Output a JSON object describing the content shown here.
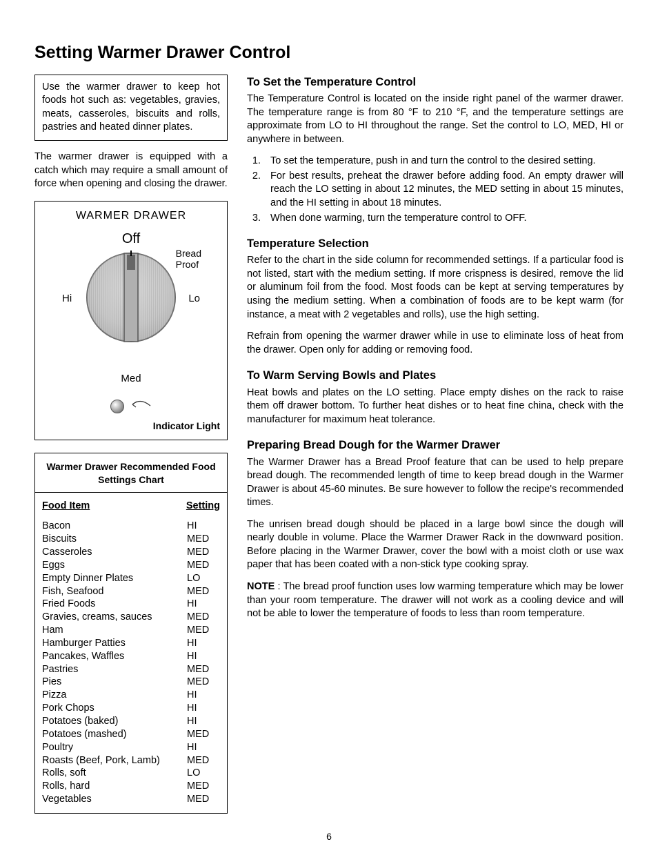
{
  "page_title": "Setting Warmer  Drawer Control",
  "intro_box": "Use the warmer drawer to keep hot foods hot such as: vegetables, gravies, meats, casseroles, biscuits and rolls, pastries and heated dinner plates.",
  "catch_text": "The warmer drawer is equipped with a catch which may require a small amount of force when opening and closing the drawer.",
  "diagram": {
    "title": "WARMER DRAWER",
    "off": "Off",
    "bread_proof": "Bread\nProof",
    "hi": "Hi",
    "lo": "Lo",
    "med": "Med",
    "indicator": "Indicator Light",
    "colors": {
      "dial_face": "#d8d8d8",
      "dial_edge": "#888888",
      "pointer_dark": "#555555",
      "pointer_fill": "#999999"
    }
  },
  "chart": {
    "title": "Warmer Drawer Recommended Food Settings Chart",
    "header_food": "Food Item",
    "header_setting": "Setting",
    "rows": [
      {
        "item": "Bacon",
        "setting": "HI"
      },
      {
        "item": "Biscuits",
        "setting": "MED"
      },
      {
        "item": "Casseroles",
        "setting": "MED"
      },
      {
        "item": "Eggs",
        "setting": "MED"
      },
      {
        "item": "Empty Dinner Plates",
        "setting": "LO"
      },
      {
        "item": "Fish, Seafood",
        "setting": "MED"
      },
      {
        "item": "Fried Foods",
        "setting": "HI"
      },
      {
        "item": "Gravies, creams, sauces",
        "setting": "MED"
      },
      {
        "item": "Ham",
        "setting": "MED"
      },
      {
        "item": "Hamburger Patties",
        "setting": "HI"
      },
      {
        "item": "Pancakes, Waffles",
        "setting": "HI"
      },
      {
        "item": "Pastries",
        "setting": "MED"
      },
      {
        "item": "Pies",
        "setting": "MED"
      },
      {
        "item": "Pizza",
        "setting": "HI"
      },
      {
        "item": "Pork Chops",
        "setting": "HI"
      },
      {
        "item": "Potatoes (baked)",
        "setting": "HI"
      },
      {
        "item": "Potatoes (mashed)",
        "setting": "MED"
      },
      {
        "item": "Poultry",
        "setting": "HI"
      },
      {
        "item": "Roasts (Beef, Pork, Lamb)",
        "setting": "MED"
      },
      {
        "item": "Rolls, soft",
        "setting": "LO"
      },
      {
        "item": "Rolls, hard",
        "setting": "MED"
      },
      {
        "item": "Vegetables",
        "setting": "MED"
      }
    ]
  },
  "sections": {
    "temp_control": {
      "heading": "To Set the Temperature Control",
      "p1": "The Temperature Control is located on the inside right panel of the warmer drawer. The temperature range is from 80 °F to 210 °F, and the temperature settings are approximate from LO to HI throughout the range. Set the control to LO, MED, HI or anywhere in between.",
      "steps": [
        "To set the temperature, push in and turn the control to the desired setting.",
        "For best results, preheat the drawer before adding food. An empty drawer will reach the LO setting in about 12 minutes, the MED setting in about 15 minutes, and the HI setting in about 18 minutes.",
        "When done warming, turn the temperature control to OFF."
      ]
    },
    "temp_selection": {
      "heading": "Temperature Selection",
      "p1": "Refer to the chart in the side column for recommended settings. If a particular food is not listed, start with the medium setting. If more crispness is desired, remove the lid or aluminum foil from the food. Most foods can be kept at serving temperatures by using the medium setting. When a combination of foods are to be kept warm (for instance, a meat with 2 vegetables and rolls), use the high setting.",
      "p2": "Refrain from opening the warmer drawer while in use to eliminate loss of heat from the drawer. Open only for adding or removing food."
    },
    "warm_bowls": {
      "heading": "To Warm Serving Bowls and Plates",
      "p1": "Heat bowls and plates on the LO setting. Place empty dishes on the rack to raise them off drawer bottom. To further heat dishes or to heat fine china, check with the manufacturer for maximum heat tolerance."
    },
    "bread": {
      "heading": "Preparing Bread Dough for the Warmer Drawer",
      "p1": "The Warmer Drawer has a Bread Proof feature that can be used to help prepare bread dough. The recommended length of time to keep bread dough in the Warmer Drawer is about 45-60 minutes. Be sure however to follow the recipe's recommended times.",
      "p2": "The unrisen bread dough should be placed in a large bowl since the dough will nearly double in volume. Place the Warmer Drawer Rack in the downward position. Before placing in the Warmer Drawer, cover the bowl with a moist cloth or use wax paper that has been coated with a non-stick type cooking spray.",
      "note_label": "NOTE",
      "note_body": " : The bread proof function uses low warming temperature which may be lower than your room temperature. The drawer will not work as a cooling device and will not be able to lower the temperature of foods to less than room temperature."
    }
  },
  "page_number": "6"
}
